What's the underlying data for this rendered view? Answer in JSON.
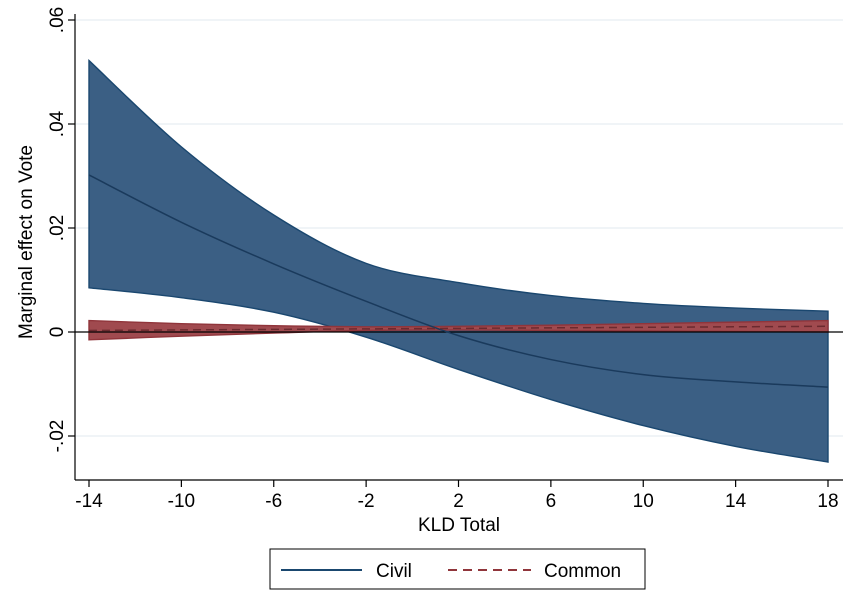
{
  "chart_data": {
    "type": "area",
    "title": "",
    "xlabel": "KLD Total",
    "ylabel": "Marginal effect on Vote",
    "xlim": [
      -14,
      18
    ],
    "ylim": [
      -0.027,
      0.06
    ],
    "x_ticks": [
      -14,
      -10,
      -6,
      -2,
      2,
      6,
      10,
      14,
      18
    ],
    "x_tick_labels": [
      "-14",
      "-10",
      "-6",
      "-2",
      "2",
      "6",
      "10",
      "14",
      "18"
    ],
    "y_ticks": [
      -0.02,
      0,
      0.02,
      0.04,
      0.06
    ],
    "y_tick_labels": [
      "-.02",
      "0",
      ".02",
      ".04",
      ".06"
    ],
    "grid": true,
    "reference_line_y": 0,
    "legend": {
      "placement": "bottom",
      "entries": [
        "Civil",
        "Common"
      ]
    },
    "series": [
      {
        "name": "Civil",
        "color": "#1a476f",
        "band_color": "#3b5f84",
        "line_style": "solid",
        "x": [
          -14,
          -10,
          -6,
          -2,
          2,
          6,
          10,
          14,
          18
        ],
        "y": [
          0.0302,
          0.0211,
          0.0131,
          0.0059,
          -0.0007,
          -0.0053,
          -0.0082,
          -0.0096,
          -0.0106
        ],
        "lower": [
          0.0085,
          0.0066,
          0.0038,
          -0.001,
          -0.0072,
          -0.013,
          -0.018,
          -0.022,
          -0.025
        ],
        "upper": [
          0.0522,
          0.0356,
          0.0225,
          0.0132,
          0.0095,
          0.007,
          0.0055,
          0.0046,
          0.004
        ]
      },
      {
        "name": "Common",
        "color": "#90353b",
        "band_color": "#a04a4f",
        "line_style": "dashed",
        "x": [
          -14,
          -10,
          -6,
          -2,
          2,
          6,
          10,
          14,
          18
        ],
        "y": [
          0.0003,
          0.0004,
          0.0005,
          0.0006,
          0.0007,
          0.0008,
          0.0009,
          0.001,
          0.0011
        ],
        "lower": [
          -0.0015,
          -0.0008,
          -0.0002,
          0.0003,
          0.0004,
          0.0003,
          0.0002,
          0.0001,
          0.0
        ],
        "upper": [
          0.0022,
          0.0016,
          0.0012,
          0.001,
          0.0011,
          0.0013,
          0.0016,
          0.0019,
          0.0022
        ]
      }
    ]
  }
}
